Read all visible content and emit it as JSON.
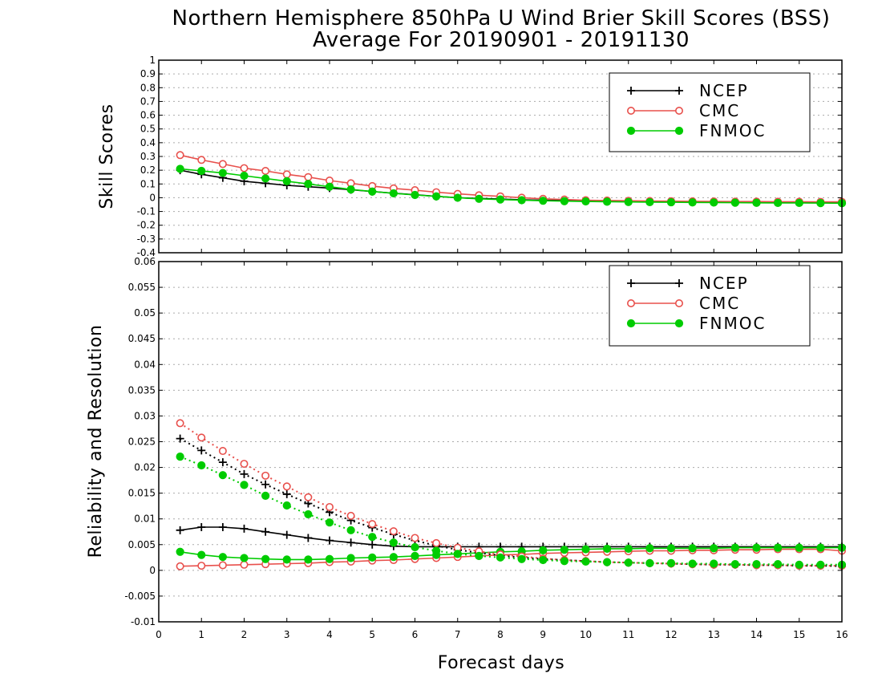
{
  "title_line1": "Northern Hemisphere 850hPa U Wind Brier Skill Scores (BSS)",
  "title_line2": "Average For 20190901 - 20191130",
  "colors": {
    "NCEP": "#000000",
    "CMC": "#e8504c",
    "FNMOC": "#00cc00"
  },
  "chart_data": [
    {
      "type": "line",
      "ylabel": "Skill Scores",
      "xlim": [
        0,
        16
      ],
      "ylim": [
        -0.4,
        1
      ],
      "yticks": [
        "-0.4",
        "-0.3",
        "-0.2",
        "-0.1",
        "0",
        "0.1",
        "0.2",
        "0.3",
        "0.4",
        "0.5",
        "0.6",
        "0.7",
        "0.8",
        "0.9",
        "1"
      ],
      "grid": true,
      "legend_position": "top-right",
      "x": [
        0.5,
        1,
        1.5,
        2,
        2.5,
        3,
        3.5,
        4,
        4.5,
        5,
        5.5,
        6,
        6.5,
        7,
        7.5,
        8,
        8.5,
        9,
        9.5,
        10,
        10.5,
        11,
        11.5,
        12,
        12.5,
        13,
        13.5,
        14,
        14.5,
        15,
        15.5,
        16
      ],
      "series": [
        {
          "name": "NCEP",
          "marker": "plus",
          "values": [
            0.2,
            0.17,
            0.145,
            0.12,
            0.105,
            0.09,
            0.08,
            0.07,
            0.058,
            0.045,
            0.033,
            0.022,
            0.01,
            0.0,
            -0.005,
            -0.01,
            -0.015,
            -0.018,
            -0.02,
            -0.022,
            -0.024,
            -0.026,
            -0.027,
            -0.028,
            -0.03,
            -0.031,
            -0.032,
            -0.033,
            -0.034,
            -0.035,
            -0.036,
            -0.038
          ]
        },
        {
          "name": "CMC",
          "marker": "open-circle",
          "values": [
            0.31,
            0.275,
            0.245,
            0.215,
            0.195,
            0.17,
            0.15,
            0.125,
            0.105,
            0.085,
            0.068,
            0.055,
            0.04,
            0.028,
            0.018,
            0.01,
            0.0,
            -0.008,
            -0.013,
            -0.018,
            -0.02,
            -0.022,
            -0.024,
            -0.025,
            -0.026,
            -0.027,
            -0.028,
            -0.028,
            -0.029,
            -0.029,
            -0.03,
            -0.03
          ]
        },
        {
          "name": "FNMOC",
          "marker": "filled-circle",
          "values": [
            0.21,
            0.195,
            0.18,
            0.16,
            0.14,
            0.12,
            0.1,
            0.08,
            0.06,
            0.045,
            0.032,
            0.02,
            0.01,
            0.0,
            -0.008,
            -0.013,
            -0.018,
            -0.022,
            -0.025,
            -0.027,
            -0.029,
            -0.031,
            -0.032,
            -0.033,
            -0.034,
            -0.035,
            -0.036,
            -0.037,
            -0.038,
            -0.038,
            -0.039,
            -0.04
          ]
        }
      ]
    },
    {
      "type": "line",
      "xlabel": "Forecast days",
      "ylabel": "Reliability and Resolution",
      "xlim": [
        0,
        16
      ],
      "ylim": [
        -0.01,
        0.06
      ],
      "xticks": [
        "0",
        "1",
        "2",
        "3",
        "4",
        "5",
        "6",
        "7",
        "8",
        "9",
        "10",
        "11",
        "12",
        "13",
        "14",
        "15",
        "16"
      ],
      "yticks": [
        "-0.01",
        "-0.005",
        "0",
        "0.005",
        "0.01",
        "0.015",
        "0.02",
        "0.025",
        "0.03",
        "0.035",
        "0.04",
        "0.045",
        "0.05",
        "0.055",
        "0.06"
      ],
      "grid": true,
      "legend_position": "top-right",
      "x": [
        0.5,
        1,
        1.5,
        2,
        2.5,
        3,
        3.5,
        4,
        4.5,
        5,
        5.5,
        6,
        6.5,
        7,
        7.5,
        8,
        8.5,
        9,
        9.5,
        10,
        10.5,
        11,
        11.5,
        12,
        12.5,
        13,
        13.5,
        14,
        14.5,
        15,
        15.5,
        16
      ],
      "series": [
        {
          "name": "NCEP",
          "style": "solid",
          "marker": "plus",
          "values": [
            0.0078,
            0.0084,
            0.0084,
            0.0081,
            0.0075,
            0.0069,
            0.0063,
            0.0058,
            0.0054,
            0.005,
            0.0047,
            0.0046,
            0.0046,
            0.0046,
            0.0046,
            0.0046,
            0.0046,
            0.0046,
            0.0046,
            0.0046,
            0.0046,
            0.0046,
            0.0046,
            0.0046,
            0.0046,
            0.0046,
            0.0046,
            0.0046,
            0.0046,
            0.0046,
            0.0046,
            0.0046
          ]
        },
        {
          "name": "CMC",
          "style": "solid",
          "marker": "open-circle",
          "values": [
            0.0008,
            0.0009,
            0.001,
            0.0011,
            0.0012,
            0.0013,
            0.0014,
            0.0016,
            0.0017,
            0.0019,
            0.002,
            0.0022,
            0.0024,
            0.0026,
            0.0028,
            0.003,
            0.0031,
            0.0033,
            0.0034,
            0.0035,
            0.0036,
            0.0037,
            0.0038,
            0.0038,
            0.0039,
            0.0039,
            0.004,
            0.004,
            0.0041,
            0.0041,
            0.0041,
            0.0038
          ]
        },
        {
          "name": "FNMOC",
          "style": "solid",
          "marker": "filled-circle",
          "values": [
            0.0036,
            0.003,
            0.0026,
            0.0024,
            0.0022,
            0.0021,
            0.0021,
            0.0022,
            0.0024,
            0.0025,
            0.0026,
            0.0028,
            0.003,
            0.0032,
            0.0034,
            0.0036,
            0.0037,
            0.0039,
            0.004,
            0.0041,
            0.0042,
            0.0042,
            0.0043,
            0.0043,
            0.0043,
            0.0043,
            0.0044,
            0.0044,
            0.0044,
            0.0044,
            0.0044,
            0.0044
          ]
        },
        {
          "name": "NCEP",
          "style": "dotted",
          "marker": "plus",
          "values": [
            0.0256,
            0.0233,
            0.021,
            0.0187,
            0.0167,
            0.0148,
            0.013,
            0.0113,
            0.0097,
            0.0083,
            0.007,
            0.0058,
            0.0048,
            0.004,
            0.0034,
            0.0029,
            0.0025,
            0.0022,
            0.002,
            0.0018,
            0.0016,
            0.0015,
            0.0014,
            0.0013,
            0.0012,
            0.0011,
            0.0011,
            0.001,
            0.001,
            0.0009,
            0.0009,
            0.0008
          ]
        },
        {
          "name": "CMC",
          "style": "dotted",
          "marker": "open-circle",
          "values": [
            0.0286,
            0.0258,
            0.0232,
            0.0207,
            0.0184,
            0.0163,
            0.0142,
            0.0123,
            0.0106,
            0.009,
            0.0076,
            0.0063,
            0.0053,
            0.0044,
            0.0037,
            0.0031,
            0.0027,
            0.0023,
            0.002,
            0.0018,
            0.0016,
            0.0015,
            0.0014,
            0.0013,
            0.0012,
            0.0011,
            0.0011,
            0.001,
            0.001,
            0.0009,
            0.0009,
            0.0009
          ]
        },
        {
          "name": "FNMOC",
          "style": "dotted",
          "marker": "filled-circle",
          "values": [
            0.0221,
            0.0204,
            0.0185,
            0.0166,
            0.0145,
            0.0126,
            0.0109,
            0.0093,
            0.0078,
            0.0065,
            0.0054,
            0.0045,
            0.0038,
            0.0032,
            0.0028,
            0.0025,
            0.0022,
            0.002,
            0.0018,
            0.0017,
            0.0016,
            0.0015,
            0.0014,
            0.0014,
            0.0013,
            0.0013,
            0.0012,
            0.0012,
            0.0012,
            0.0011,
            0.0011,
            0.0011
          ]
        }
      ]
    }
  ]
}
